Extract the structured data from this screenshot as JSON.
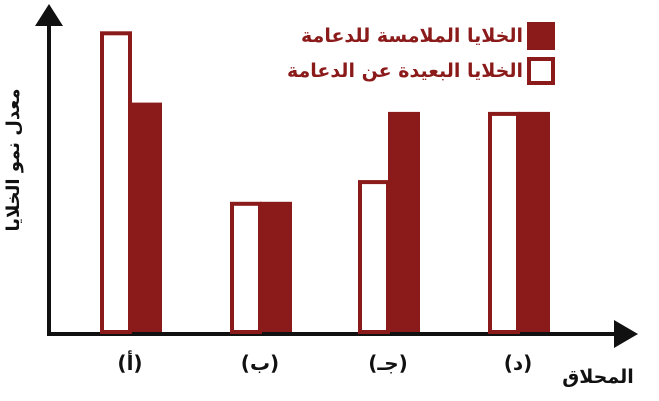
{
  "chart_data": {
    "type": "bar",
    "title": "",
    "xlabel": "المحلاق",
    "ylabel": "معدل نمو الخلايا",
    "categories": [
      "(أ)",
      "(ب)",
      "(جـ)",
      "(د)"
    ],
    "series": [
      {
        "name": "الخلايا البعيدة عن الدعامة",
        "values": [
          97,
          42,
          49,
          71
        ]
      },
      {
        "name": "الخلايا الملامسة للدعامة",
        "values": [
          74,
          42,
          71,
          71
        ]
      }
    ],
    "ylim": [
      0,
      100
    ],
    "grid": false,
    "legend": "top-right"
  },
  "colors": {
    "far_fill": "#ffffff",
    "far_border": "#8B1A1A",
    "touching_fill": "#8B1A1A",
    "axis": "#111111",
    "label_text": "#8B1A1A"
  }
}
